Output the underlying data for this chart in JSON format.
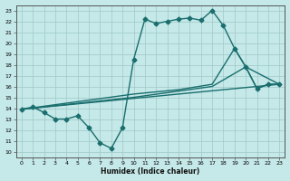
{
  "xlabel": "Humidex (Indice chaleur)",
  "bg_color": "#c5e8e8",
  "grid_color": "#a0c8c8",
  "line_color": "#1a6e6e",
  "marker": "D",
  "markersize": 2.5,
  "linewidth": 1.0,
  "xlim": [
    -0.5,
    23.5
  ],
  "ylim": [
    9.5,
    23.5
  ],
  "xticks": [
    0,
    1,
    2,
    3,
    4,
    5,
    6,
    7,
    8,
    9,
    10,
    11,
    12,
    13,
    14,
    15,
    16,
    17,
    18,
    19,
    20,
    21,
    22,
    23
  ],
  "yticks": [
    10,
    11,
    12,
    13,
    14,
    15,
    16,
    17,
    18,
    19,
    20,
    21,
    22,
    23
  ],
  "curve1_x": [
    0,
    1,
    2,
    3,
    4,
    5,
    6,
    7,
    8,
    9,
    10,
    11,
    12,
    13,
    14,
    15,
    16,
    17,
    18,
    19,
    20,
    21,
    22,
    23
  ],
  "curve1_y": [
    13.9,
    14.1,
    13.6,
    13.0,
    13.0,
    13.3,
    12.2,
    10.8,
    10.3,
    12.2,
    18.5,
    22.2,
    21.8,
    22.0,
    22.2,
    22.3,
    22.1,
    23.0,
    21.6,
    19.5,
    17.8,
    15.8,
    16.2,
    16.2
  ],
  "curve2_x": [
    0,
    10,
    14,
    17,
    19,
    20,
    21,
    22,
    23
  ],
  "curve2_y": [
    13.9,
    15.3,
    15.7,
    16.2,
    19.5,
    17.8,
    15.8,
    16.2,
    16.2
  ],
  "curve3_x": [
    0,
    10,
    17,
    20,
    23
  ],
  "curve3_y": [
    13.9,
    15.0,
    16.0,
    17.8,
    16.2
  ],
  "curve4_x": [
    0,
    23
  ],
  "curve4_y": [
    13.9,
    16.2
  ]
}
